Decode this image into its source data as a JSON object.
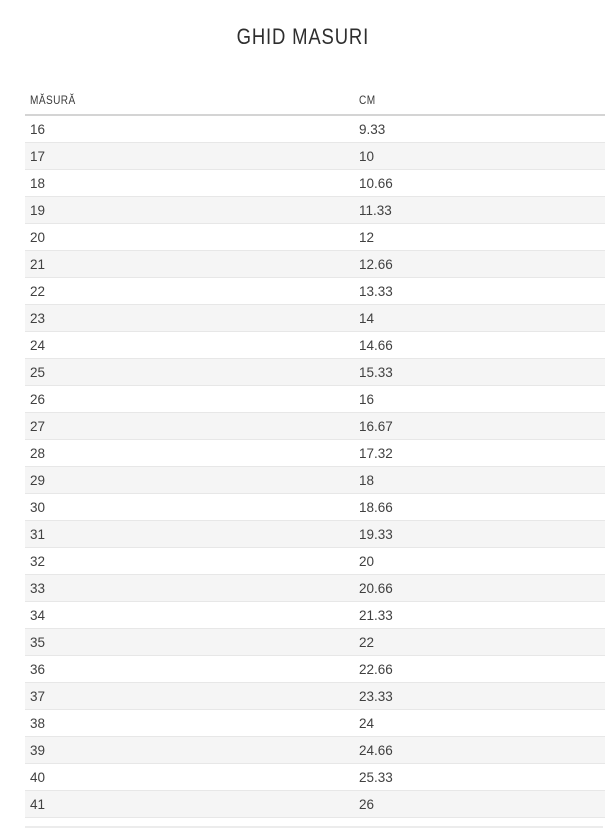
{
  "page": {
    "title": "GHID MASURI"
  },
  "table": {
    "columns": [
      {
        "label": "MĂSURĂ"
      },
      {
        "label": "CM"
      }
    ],
    "rows": [
      {
        "size": "16",
        "cm": "9.33"
      },
      {
        "size": "17",
        "cm": "10"
      },
      {
        "size": "18",
        "cm": "10.66"
      },
      {
        "size": "19",
        "cm": "11.33"
      },
      {
        "size": "20",
        "cm": "12"
      },
      {
        "size": "21",
        "cm": "12.66"
      },
      {
        "size": "22",
        "cm": "13.33"
      },
      {
        "size": "23",
        "cm": "14"
      },
      {
        "size": "24",
        "cm": "14.66"
      },
      {
        "size": "25",
        "cm": "15.33"
      },
      {
        "size": "26",
        "cm": "16"
      },
      {
        "size": "27",
        "cm": "16.67"
      },
      {
        "size": "28",
        "cm": "17.32"
      },
      {
        "size": "29",
        "cm": "18"
      },
      {
        "size": "30",
        "cm": "18.66"
      },
      {
        "size": "31",
        "cm": "19.33"
      },
      {
        "size": "32",
        "cm": "20"
      },
      {
        "size": "33",
        "cm": "20.66"
      },
      {
        "size": "34",
        "cm": "21.33"
      },
      {
        "size": "35",
        "cm": "22"
      },
      {
        "size": "36",
        "cm": "22.66"
      },
      {
        "size": "37",
        "cm": "23.33"
      },
      {
        "size": "38",
        "cm": "24"
      },
      {
        "size": "39",
        "cm": "24.66"
      },
      {
        "size": "40",
        "cm": "25.33"
      },
      {
        "size": "41",
        "cm": "26"
      }
    ]
  },
  "colors": {
    "zebra_row": "#f5f5f5",
    "row_border": "#e7e7e7",
    "header_border": "#d4d4d4",
    "text": "#404040",
    "title_text": "#2e2e2e"
  }
}
